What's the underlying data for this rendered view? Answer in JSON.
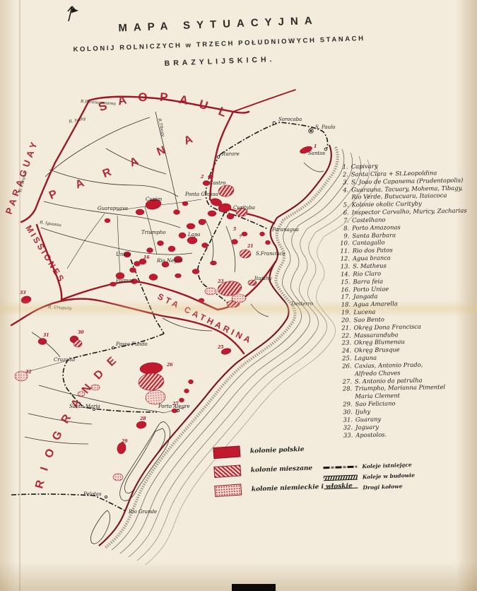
{
  "title": {
    "line1": "MAPA  SYTUACYJNA",
    "line2": "KOLONIJ  ROLNICZYCH  w TRZECH  POŁUDNIOWYCH  STANACH",
    "line3": "BRAZYLIJSKICH."
  },
  "colors": {
    "accent_red": "#b5182a",
    "ink": "#24231f",
    "paper": "#f3ecdd"
  },
  "map": {
    "regions": {
      "sao_paulo": "S A O   P A U L O",
      "parana": "P A R A N A",
      "paraguay": "PARAGUAY",
      "missiones": "MISSIONES",
      "sta_catharina": "STA  CATHARINA",
      "rio_grande": "R I O   G R A N D E"
    },
    "rivers": {
      "paranapanema": "R.Paranapanema",
      "ivahy": "R. Ivahy",
      "tibagy": "R.Tibagy",
      "iguassu": "R. Iguassu",
      "uruguay": "R. Uruguay",
      "parana_r": "R. Parana"
    },
    "cities": {
      "sorocaba": "Sorocaba",
      "s_paulo": "S. Paulo",
      "santos": "Santos",
      "itarare": "Itarare",
      "castro": "Castro",
      "cupim": "Cupim",
      "p_grossa": "Ponta Grossa",
      "guarapuava": "Guarapuava",
      "paranagua": "Paranagua",
      "curityba": "Curityba",
      "triumpho": "Triumpho",
      "lapa": "Lapa",
      "uniao": "Uniao",
      "rio_negro": "Rio Negro",
      "palmas": "Palmas",
      "s_francisco": "S.Francisco",
      "itajahy": "Itajahy",
      "desterro": "Desterro",
      "passo_fundo": "Passo Fundo",
      "cruzalta": "Cruzalta",
      "santa_maria": "Santa Maria",
      "porto_alegre": "Porto Alegre",
      "pelotas": "Pelotas",
      "rio_grande_city": "Rio Grande"
    },
    "numbers": {
      "n1": "1",
      "n2": "2",
      "n5": "5",
      "n7": "7",
      "n16": "16",
      "n21": "21",
      "n23": "23",
      "n25": "25",
      "n26": "26",
      "n27": "27",
      "n28": "28",
      "n29": "29",
      "n30": "30",
      "n31": "31",
      "n32": "32",
      "n33": "33"
    }
  },
  "numbered_list": {
    "items": [
      {
        "n": "1.",
        "label": "Capivary"
      },
      {
        "n": "2.",
        "label": "Santa Clara + St.Leopoldina"
      },
      {
        "n": "3.",
        "label": "S. Joao de Capanema (Prudentopolis)"
      },
      {
        "n": "4.",
        "label": "Guarauna, Tacuary, Mohema, Tibagy,"
      },
      {
        "n": "",
        "label": "Rio Verde, Butucuara, Itaiacoca"
      },
      {
        "n": "5.",
        "label": "Kolonie okolic Curityby"
      },
      {
        "n": "6.",
        "label": "Inspector Carvalho, Muricy, Zacharias"
      },
      {
        "n": "7.",
        "label": "Castelhano"
      },
      {
        "n": "8.",
        "label": "Porto Amazonas"
      },
      {
        "n": "9.",
        "label": "Santa Barbara"
      },
      {
        "n": "10.",
        "label": "Cantagallo"
      },
      {
        "n": "11.",
        "label": "Rio dos Patos"
      },
      {
        "n": "12.",
        "label": "Agua branca"
      },
      {
        "n": "13.",
        "label": "S. Matheus"
      },
      {
        "n": "14.",
        "label": "Rio Claro"
      },
      {
        "n": "15.",
        "label": "Barra feia"
      },
      {
        "n": "16.",
        "label": "Porto Uniae"
      },
      {
        "n": "17.",
        "label": "Jangada"
      },
      {
        "n": "18.",
        "label": "Agua Amarella"
      },
      {
        "n": "19.",
        "label": "Lucena"
      },
      {
        "n": "20.",
        "label": "Sao Bento"
      },
      {
        "n": "21.",
        "label": "Okręg Dona Francisca"
      },
      {
        "n": "22.",
        "label": "Massaranduba"
      },
      {
        "n": "23.",
        "label": "Okręg Blumenau"
      },
      {
        "n": "24.",
        "label": "Okręg Brusque"
      },
      {
        "n": "25.",
        "label": "Laguna"
      },
      {
        "n": "26.",
        "label": "Caxias, Antonio Prado,"
      },
      {
        "n": "",
        "label": "Alfredo Chaves"
      },
      {
        "n": "27.",
        "label": "S. Antonio da patrulha"
      },
      {
        "n": "28.",
        "label": "Triumpho, Marianna Pimentel"
      },
      {
        "n": "",
        "label": "Maria Clement"
      },
      {
        "n": "29.",
        "label": "Sao Feliciano"
      },
      {
        "n": "30.",
        "label": "Ijuhy"
      },
      {
        "n": "31.",
        "label": "Guarany"
      },
      {
        "n": "32.",
        "label": "Jaguary"
      },
      {
        "n": "33.",
        "label": "Apostolos."
      }
    ]
  },
  "legend_colonies": [
    {
      "swatch": "solid",
      "label": "kolonie polskie"
    },
    {
      "swatch": "hatched",
      "label": "kolonie mieszane"
    },
    {
      "swatch": "stippled",
      "label": "kolonie niemieckie i włoskie"
    }
  ],
  "legend_lines": [
    {
      "style": "railway-existing",
      "label": "Koleje istniejące"
    },
    {
      "style": "railway-building",
      "label": "Koleje w budowie"
    },
    {
      "style": "road",
      "label": "Drogi kołowe"
    }
  ]
}
